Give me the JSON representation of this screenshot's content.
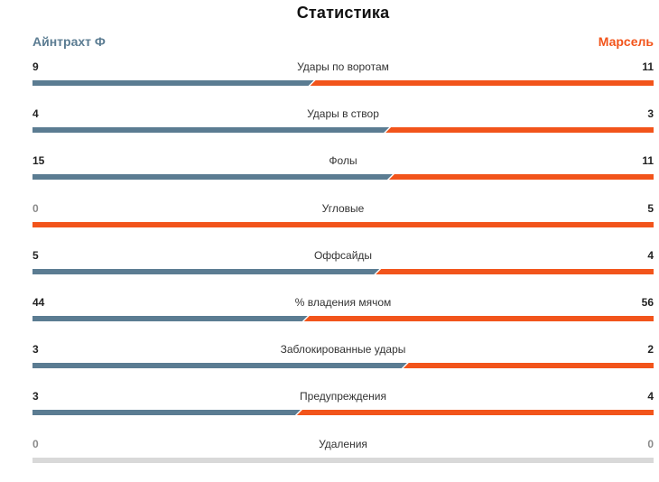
{
  "header": {
    "title": "Статистика",
    "home_team": "Айнтрахт Ф",
    "away_team": "Марсель"
  },
  "colors": {
    "home": "#5b7c92",
    "away": "#f2541b",
    "empty": "#d9d9d9",
    "zero_text": "#8a8a8a"
  },
  "stats": [
    {
      "label": "Удары по воротам",
      "home": "9",
      "away": "11",
      "home_share": 0.45
    },
    {
      "label": "Удары в створ",
      "home": "4",
      "away": "3",
      "home_share": 0.5714
    },
    {
      "label": "Фолы",
      "home": "15",
      "away": "11",
      "home_share": 0.5769
    },
    {
      "label": "Угловые",
      "home": "0",
      "away": "5",
      "home_share": 0.0
    },
    {
      "label": "Оффсайды",
      "home": "5",
      "away": "4",
      "home_share": 0.5556
    },
    {
      "label": "% владения мячом",
      "home": "44",
      "away": "56",
      "home_share": 0.44
    },
    {
      "label": "Заблокированные удары",
      "home": "3",
      "away": "2",
      "home_share": 0.6
    },
    {
      "label": "Предупреждения",
      "home": "3",
      "away": "4",
      "home_share": 0.4286
    },
    {
      "label": "Удаления",
      "home": "0",
      "away": "0",
      "home_share": null
    }
  ]
}
